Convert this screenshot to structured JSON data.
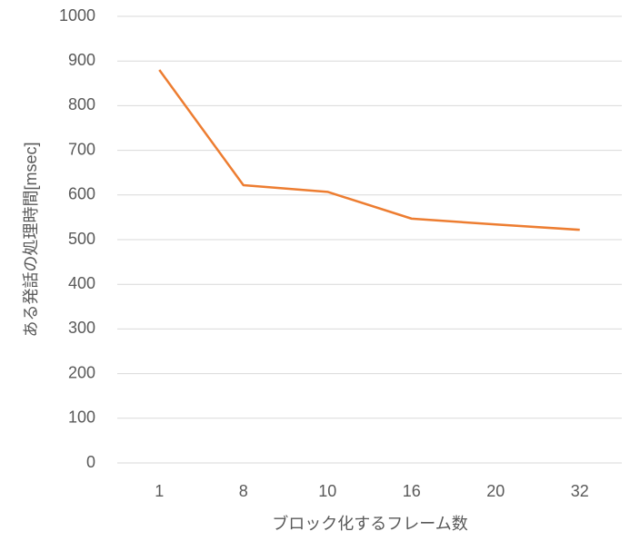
{
  "chart_data": {
    "type": "line",
    "x_label": "ブロック化するフレーム数",
    "y_label": "ある発話の処理時間[msec]",
    "categories": [
      "1",
      "8",
      "10",
      "16",
      "20",
      "32"
    ],
    "series": [
      {
        "color": "#ed7d31",
        "values": [
          880,
          622,
          607,
          547,
          534,
          522
        ]
      }
    ],
    "ylim": [
      0,
      1000
    ],
    "yticks": [
      0,
      100,
      200,
      300,
      400,
      500,
      600,
      700,
      800,
      900,
      1000
    ],
    "grid": true
  }
}
